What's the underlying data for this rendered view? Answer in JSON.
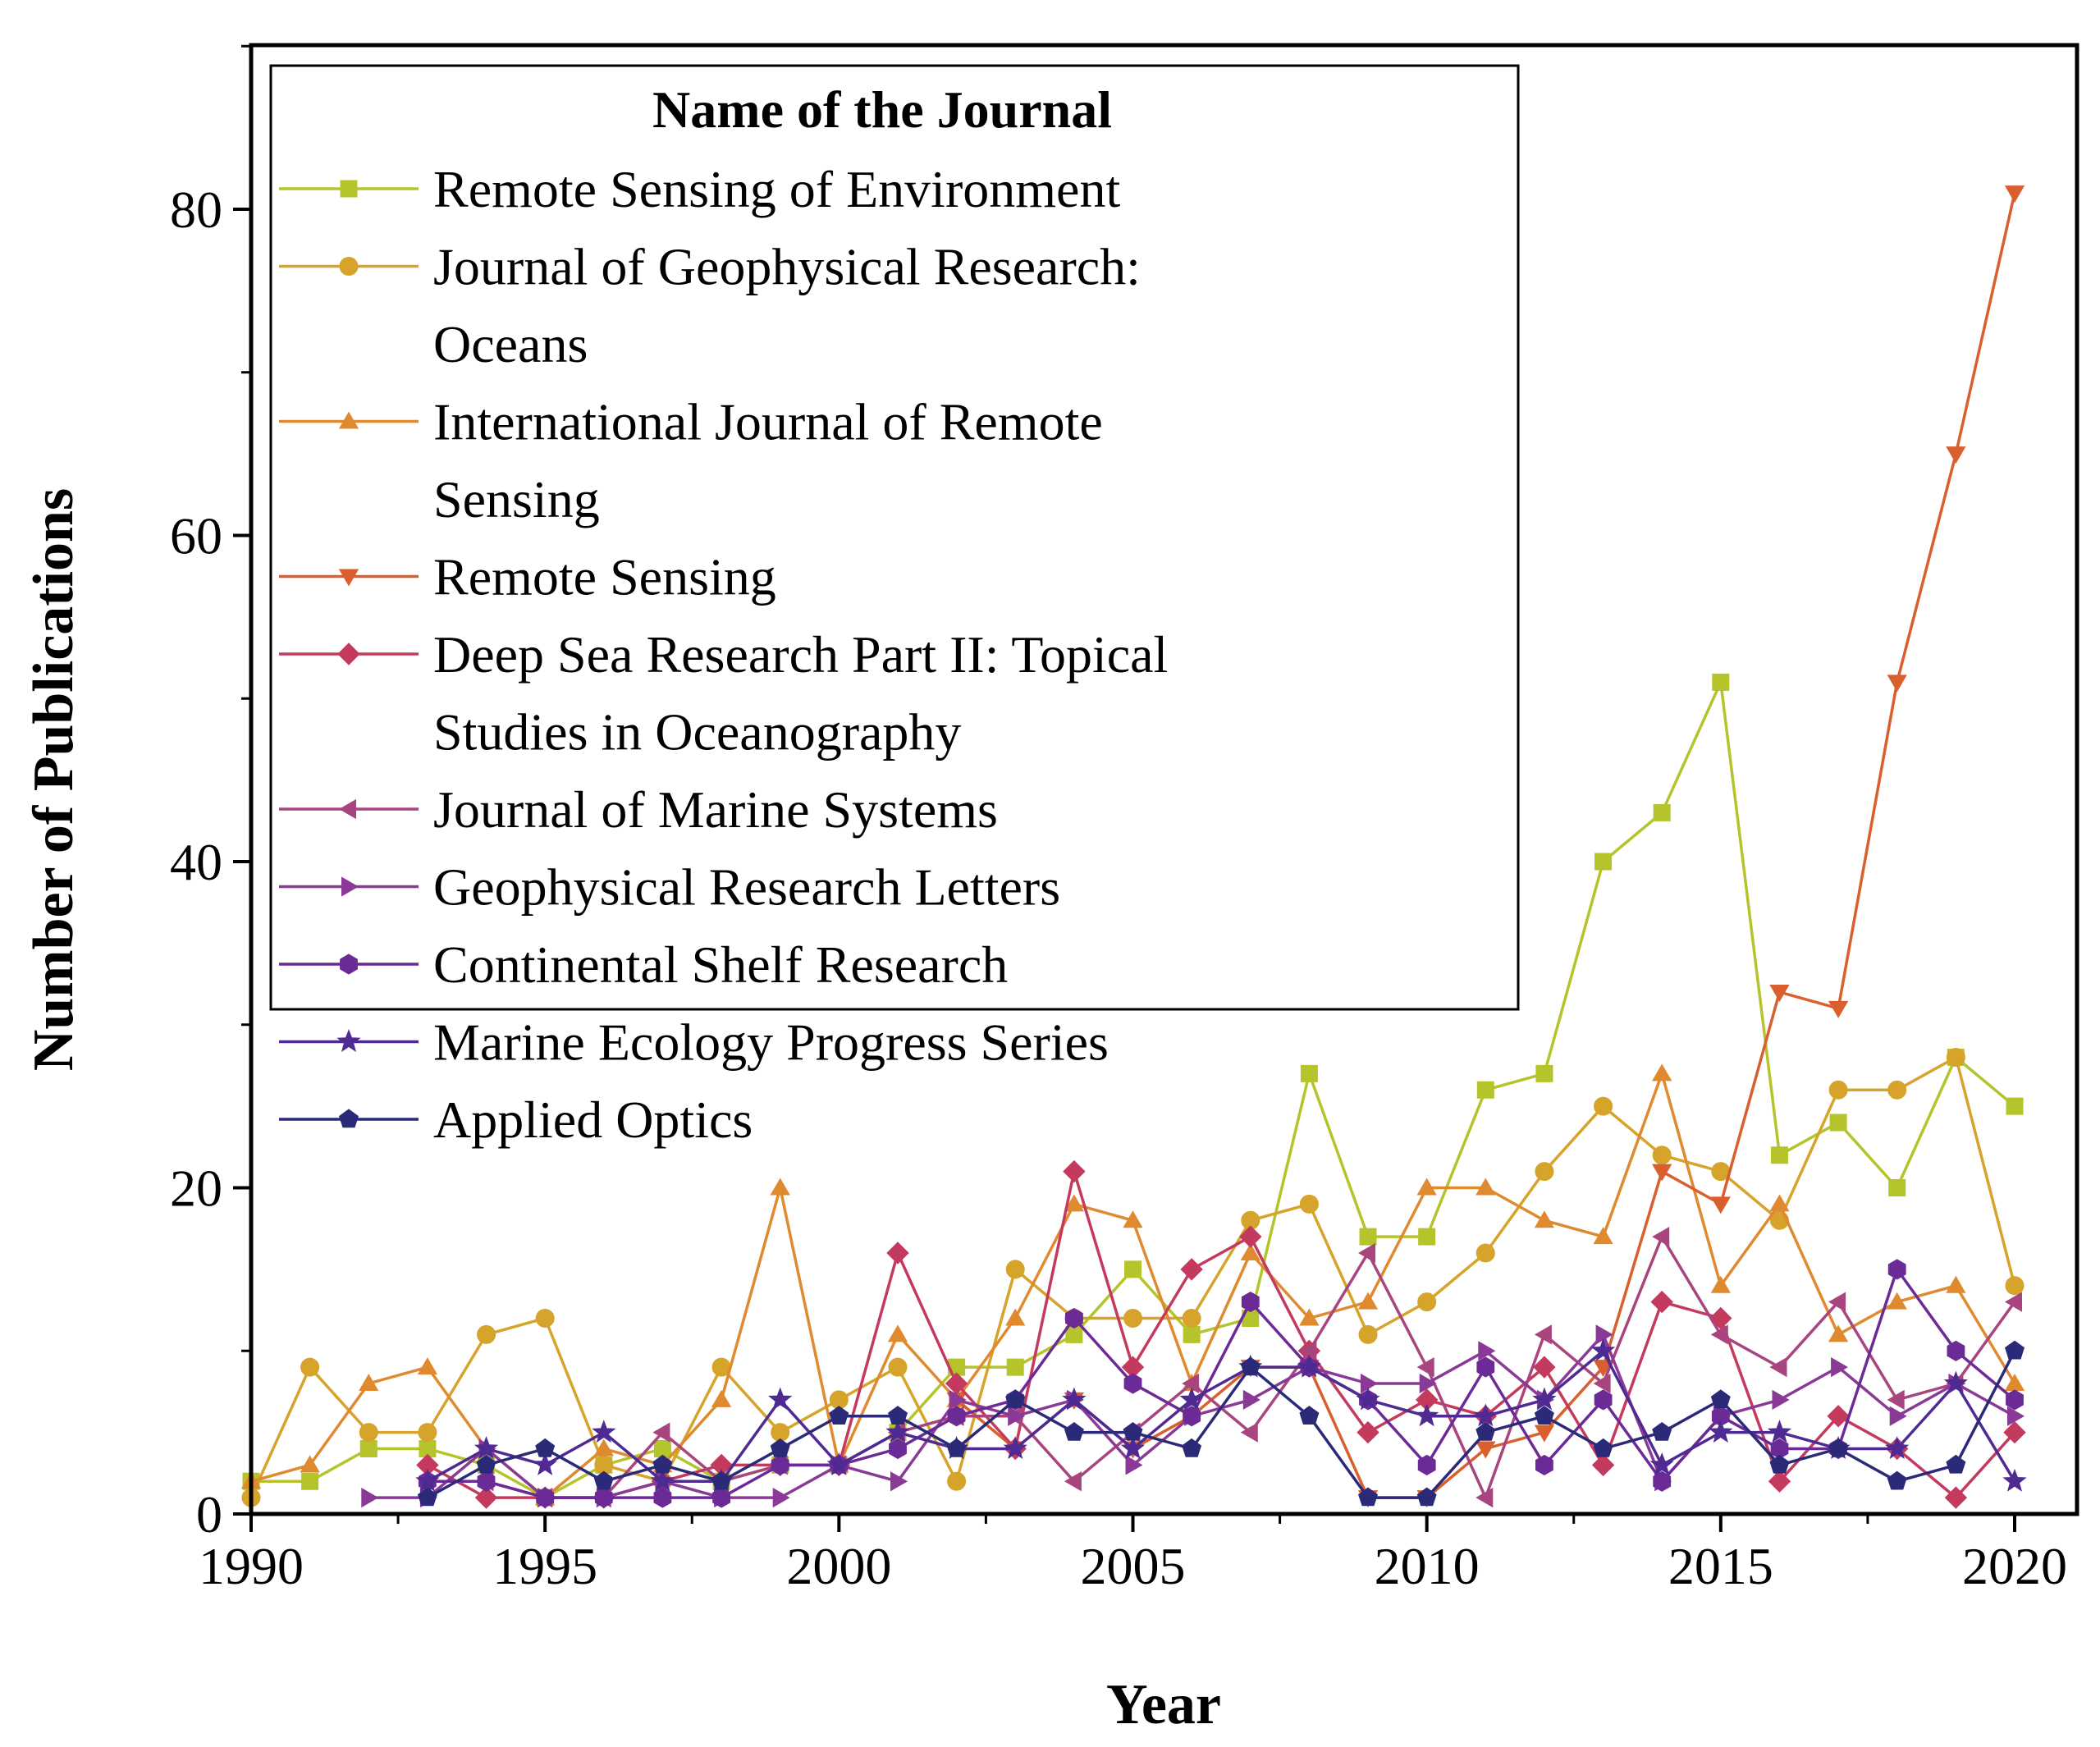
{
  "chart_data": {
    "type": "line",
    "title": "",
    "xlabel": "Year",
    "ylabel": "Number of Publications",
    "xlim": [
      1990,
      2021
    ],
    "ylim": [
      0,
      90
    ],
    "xticks": [
      1990,
      1995,
      2000,
      2005,
      2010,
      2015,
      2020
    ],
    "yticks": [
      0,
      20,
      40,
      60,
      80
    ],
    "grid": false,
    "legend": {
      "title": "Name of the Journal",
      "placement": "top-left"
    },
    "series": [
      {
        "name": "Remote Sensing of Environment",
        "color": "#b5c42a",
        "marker": "square",
        "x": [
          1990,
          1991,
          1992,
          1993,
          1994,
          1995,
          1996,
          1997,
          1998,
          1999,
          2000,
          2001,
          2002,
          2003,
          2004,
          2005,
          2006,
          2007,
          2008,
          2009,
          2010,
          2011,
          2012,
          2013,
          2014,
          2015,
          2016,
          2017,
          2018,
          2019,
          2020
        ],
        "values": [
          2,
          2,
          4,
          4,
          3,
          1,
          3,
          4,
          2,
          3,
          3,
          5,
          9,
          9,
          11,
          15,
          11,
          12,
          27,
          17,
          17,
          26,
          27,
          40,
          43,
          51,
          22,
          24,
          20,
          28,
          25
        ]
      },
      {
        "name": "Journal of Geophysical Research: Oceans",
        "color": "#d6a32b",
        "marker": "circle",
        "x": [
          1990,
          1991,
          1992,
          1993,
          1994,
          1995,
          1996,
          1997,
          1998,
          1999,
          2000,
          2001,
          2002,
          2003,
          2004,
          2005,
          2006,
          2007,
          2008,
          2009,
          2010,
          2011,
          2012,
          2013,
          2014,
          2015,
          2016,
          2017,
          2018,
          2019,
          2020
        ],
        "values": [
          1,
          9,
          5,
          5,
          11,
          12,
          3,
          2,
          9,
          5,
          7,
          9,
          2,
          15,
          12,
          12,
          12,
          18,
          19,
          11,
          13,
          16,
          21,
          25,
          22,
          21,
          18,
          26,
          26,
          28,
          14
        ]
      },
      {
        "name": "International Journal of Remote Sensing",
        "color": "#e08a30",
        "marker": "triangle-up",
        "x": [
          1990,
          1991,
          1992,
          1993,
          1994,
          1995,
          1996,
          1997,
          1998,
          1999,
          2000,
          2001,
          2002,
          2003,
          2004,
          2005,
          2006,
          2007,
          2008,
          2009,
          2010,
          2011,
          2012,
          2013,
          2014,
          2015,
          2016,
          2017,
          2018,
          2019,
          2020
        ],
        "values": [
          2,
          3,
          8,
          9,
          4,
          1,
          4,
          3,
          7,
          20,
          3,
          11,
          7,
          12,
          19,
          18,
          8,
          16,
          12,
          13,
          20,
          20,
          18,
          17,
          27,
          14,
          19,
          11,
          13,
          14,
          8
        ]
      },
      {
        "name": "Remote Sensing",
        "color": "#d95f2e",
        "marker": "triangle-down",
        "x": [
          2002,
          2003,
          2004,
          2005,
          2006,
          2007,
          2008,
          2009,
          2010,
          2011,
          2012,
          2013,
          2014,
          2015,
          2016,
          2017,
          2018,
          2019,
          2020
        ],
        "values": [
          7,
          4,
          7,
          4,
          6,
          9,
          9,
          1,
          1,
          4,
          5,
          9,
          21,
          19,
          32,
          31,
          51,
          65,
          81
        ]
      },
      {
        "name": "Deep Sea Research Part II: Topical Studies in Oceanography",
        "color": "#c43a5e",
        "marker": "diamond",
        "x": [
          1993,
          1994,
          1995,
          1996,
          1997,
          1998,
          1999,
          2000,
          2001,
          2002,
          2003,
          2004,
          2005,
          2006,
          2007,
          2008,
          2009,
          2010,
          2011,
          2012,
          2013,
          2014,
          2015,
          2016,
          2017,
          2018,
          2019,
          2020
        ],
        "values": [
          3,
          1,
          1,
          1,
          2,
          3,
          3,
          3,
          16,
          8,
          4,
          21,
          9,
          15,
          17,
          10,
          5,
          7,
          6,
          9,
          3,
          13,
          12,
          2,
          6,
          4,
          1,
          5
        ]
      },
      {
        "name": "Journal of Marine Systems",
        "color": "#a8447e",
        "marker": "triangle-left",
        "x": [
          1994,
          1995,
          1996,
          1997,
          1998,
          1999,
          2000,
          2001,
          2002,
          2003,
          2004,
          2005,
          2006,
          2007,
          2008,
          2009,
          2010,
          2011,
          2012,
          2013,
          2014,
          2015,
          2016,
          2017,
          2018,
          2019,
          2020
        ],
        "values": [
          2,
          1,
          1,
          5,
          2,
          3,
          3,
          5,
          6,
          6,
          2,
          5,
          8,
          5,
          10,
          16,
          9,
          1,
          11,
          8,
          17,
          11,
          9,
          13,
          7,
          8,
          13
        ]
      },
      {
        "name": "Geophysical Research Letters",
        "color": "#8a3a96",
        "marker": "triangle-right",
        "x": [
          1992,
          1993,
          1994,
          1995,
          1996,
          1997,
          1998,
          1999,
          2000,
          2001,
          2002,
          2003,
          2004,
          2005,
          2006,
          2007,
          2008,
          2009,
          2010,
          2011,
          2012,
          2013,
          2014,
          2015,
          2016,
          2017,
          2018,
          2019,
          2020
        ],
        "values": [
          1,
          1,
          4,
          1,
          1,
          2,
          1,
          1,
          3,
          2,
          7,
          6,
          7,
          3,
          6,
          7,
          9,
          8,
          8,
          10,
          7,
          11,
          2,
          6,
          7,
          9,
          6,
          8,
          6
        ]
      },
      {
        "name": "Continental Shelf Research",
        "color": "#6c2a96",
        "marker": "hexagon",
        "x": [
          1993,
          1994,
          1995,
          1996,
          1997,
          1998,
          1999,
          2000,
          2001,
          2002,
          2003,
          2004,
          2005,
          2006,
          2007,
          2008,
          2009,
          2010,
          2011,
          2012,
          2013,
          2014,
          2015,
          2016,
          2017,
          2018,
          2019,
          2020
        ],
        "values": [
          2,
          2,
          1,
          1,
          1,
          1,
          3,
          3,
          4,
          6,
          7,
          12,
          8,
          6,
          13,
          9,
          7,
          3,
          9,
          3,
          7,
          2,
          6,
          4,
          4,
          15,
          10,
          7
        ]
      },
      {
        "name": "Marine Ecology Progress Series",
        "color": "#4e2a92",
        "marker": "star",
        "x": [
          1993,
          1994,
          1995,
          1996,
          1997,
          1998,
          1999,
          2000,
          2001,
          2002,
          2003,
          2004,
          2005,
          2006,
          2007,
          2008,
          2009,
          2010,
          2011,
          2012,
          2013,
          2014,
          2015,
          2016,
          2017,
          2018,
          2019,
          2020
        ],
        "values": [
          2,
          4,
          3,
          5,
          2,
          2,
          7,
          3,
          5,
          4,
          4,
          7,
          4,
          7,
          9,
          9,
          7,
          6,
          6,
          7,
          10,
          3,
          5,
          5,
          4,
          4,
          8,
          2
        ]
      },
      {
        "name": "Applied Optics",
        "color": "#2b2a78",
        "marker": "pentagon",
        "x": [
          1993,
          1994,
          1995,
          1996,
          1997,
          1998,
          1999,
          2000,
          2001,
          2002,
          2003,
          2004,
          2005,
          2006,
          2007,
          2008,
          2009,
          2010,
          2011,
          2012,
          2013,
          2014,
          2015,
          2016,
          2017,
          2018,
          2019,
          2020
        ],
        "values": [
          1,
          3,
          4,
          2,
          3,
          2,
          4,
          6,
          6,
          4,
          7,
          5,
          5,
          4,
          9,
          6,
          1,
          1,
          5,
          6,
          4,
          5,
          7,
          3,
          4,
          2,
          3,
          10
        ]
      }
    ]
  }
}
